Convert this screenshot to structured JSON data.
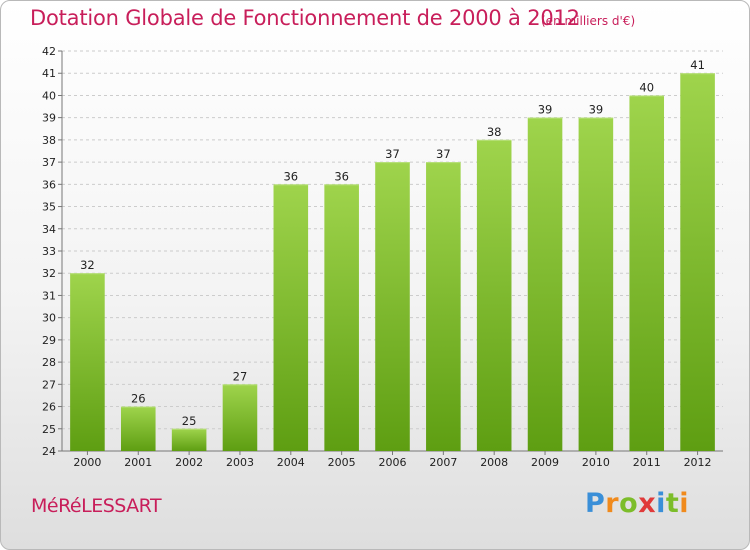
{
  "title": "Dotation Globale de Fonctionnement de 2000 à 2012",
  "subtitle": "(en milliers d'€)",
  "commune": "MéRéLESSART",
  "logo": {
    "letters": [
      "P",
      "r",
      "o",
      "x",
      "i",
      "t",
      "i"
    ],
    "colors": [
      "#3a8fd8",
      "#f08a1c",
      "#7cbd2a",
      "#e03a3a",
      "#3a8fd8",
      "#7cbd2a",
      "#f08a1c"
    ]
  },
  "colors": {
    "title": "#c81e5a",
    "bar_top": "#9fd44c",
    "bar_bottom": "#5e9e12",
    "grid": "#cccccc"
  },
  "chart_data": {
    "type": "bar",
    "title": "Dotation Globale de Fonctionnement de 2000 à 2012",
    "subtitle": "(en milliers d'€)",
    "xlabel": "",
    "ylabel": "",
    "categories": [
      "2000",
      "2001",
      "2002",
      "2003",
      "2004",
      "2005",
      "2006",
      "2007",
      "2008",
      "2009",
      "2010",
      "2011",
      "2012"
    ],
    "values": [
      32,
      26,
      25,
      27,
      36,
      36,
      37,
      37,
      38,
      39,
      39,
      40,
      41
    ],
    "ylim": [
      24,
      42
    ],
    "yticks": [
      24,
      25,
      26,
      27,
      28,
      29,
      30,
      31,
      32,
      33,
      34,
      35,
      36,
      37,
      38,
      39,
      40,
      41,
      42
    ],
    "grid": "horizontal dashed",
    "legend": "none"
  }
}
